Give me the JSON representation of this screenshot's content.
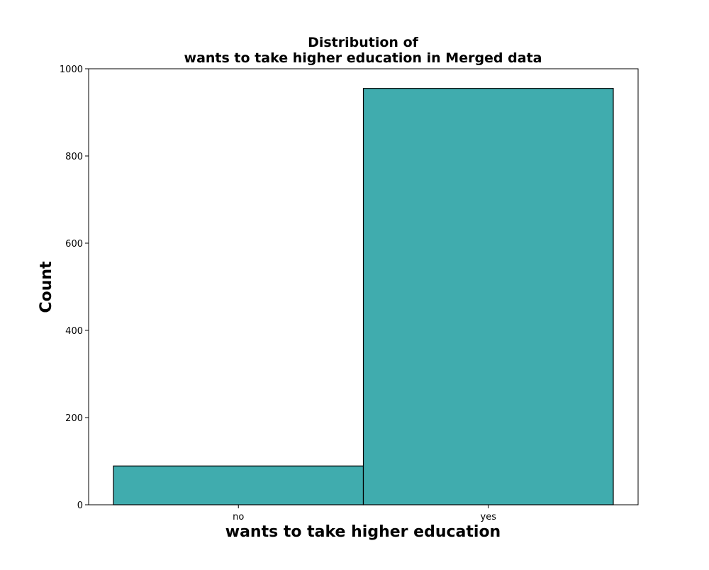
{
  "chart_data": {
    "type": "bar",
    "title": "Distribution of\nwants to take higher education in Merged data",
    "title_lines": [
      "Distribution of",
      "wants to take higher education in Merged data"
    ],
    "xlabel": "wants to take higher education",
    "ylabel": "Count",
    "categories": [
      "no",
      "yes"
    ],
    "values": [
      89,
      955
    ],
    "ylim": [
      0,
      1000
    ],
    "yticks": [
      0,
      200,
      400,
      600,
      800,
      1000
    ],
    "grid": false,
    "legend": "none",
    "bar_color": "#40acae",
    "edge_color": "#000000"
  }
}
